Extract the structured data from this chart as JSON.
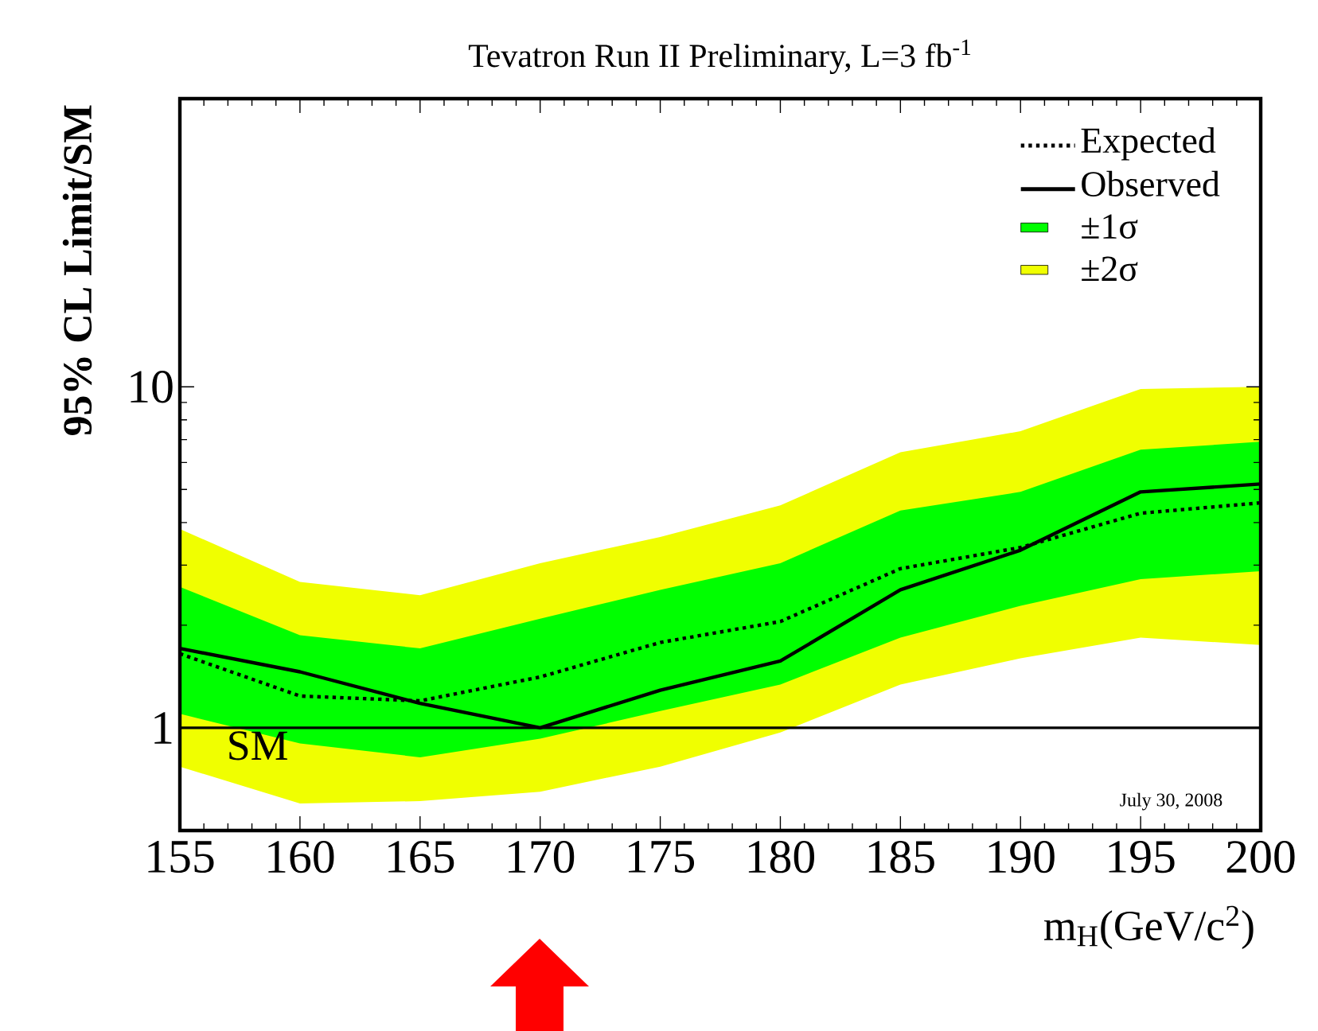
{
  "chart_data": {
    "type": "line",
    "title": "Tevatron Run II Preliminary, L=3 fb$^{-1}$",
    "xlabel": "m$_{H}$(GeV/c$^{2}$)",
    "ylabel": "95% CL Limit/SM",
    "x": [
      155,
      160,
      165,
      170,
      175,
      180,
      185,
      190,
      195,
      200
    ],
    "series": [
      {
        "name": "Expected",
        "color": "#000000",
        "line_style": "dotted",
        "values": [
          1.65,
          1.24,
          1.2,
          1.41,
          1.78,
          2.05,
          2.93,
          3.38,
          4.26,
          4.57
        ]
      },
      {
        "name": "Observed",
        "color": "#000000",
        "line_style": "solid",
        "values": [
          1.71,
          1.46,
          1.18,
          1.0,
          1.29,
          1.57,
          2.54,
          3.32,
          4.92,
          5.19
        ]
      },
      {
        "name": "±1σ",
        "type": "area",
        "color": "#00ff00",
        "values": [
          null,
          null,
          null,
          null,
          null,
          null,
          null,
          null,
          null,
          null
        ],
        "lower": [
          1.1,
          0.9,
          0.82,
          0.93,
          1.12,
          1.34,
          1.84,
          2.28,
          2.73,
          2.88
        ],
        "upper": [
          2.59,
          1.87,
          1.71,
          2.09,
          2.54,
          3.04,
          4.34,
          4.92,
          6.54,
          6.9
        ]
      },
      {
        "name": "±2σ",
        "type": "area",
        "color": "#f0ff00",
        "values": [
          null,
          null,
          null,
          null,
          null,
          null,
          null,
          null,
          null,
          null
        ],
        "lower": [
          0.77,
          0.6,
          0.61,
          0.65,
          0.77,
          0.97,
          1.34,
          1.6,
          1.84,
          1.75
        ],
        "upper": [
          3.83,
          2.68,
          2.45,
          3.04,
          3.63,
          4.49,
          6.43,
          7.41,
          9.86,
          10.0
        ]
      }
    ],
    "ref_lines": [
      {
        "axis": "y",
        "value": 1,
        "label": "SM",
        "color": "#000000"
      }
    ],
    "annotations": [
      "July 30, 2008"
    ],
    "xlim": [
      155,
      200
    ],
    "ylim": [
      0.5,
      70
    ],
    "xticks": [
      155,
      160,
      165,
      170,
      175,
      180,
      185,
      190,
      195,
      200
    ],
    "yticks": [
      1,
      10
    ],
    "log": "y",
    "grid": false,
    "legend": "top right"
  }
}
